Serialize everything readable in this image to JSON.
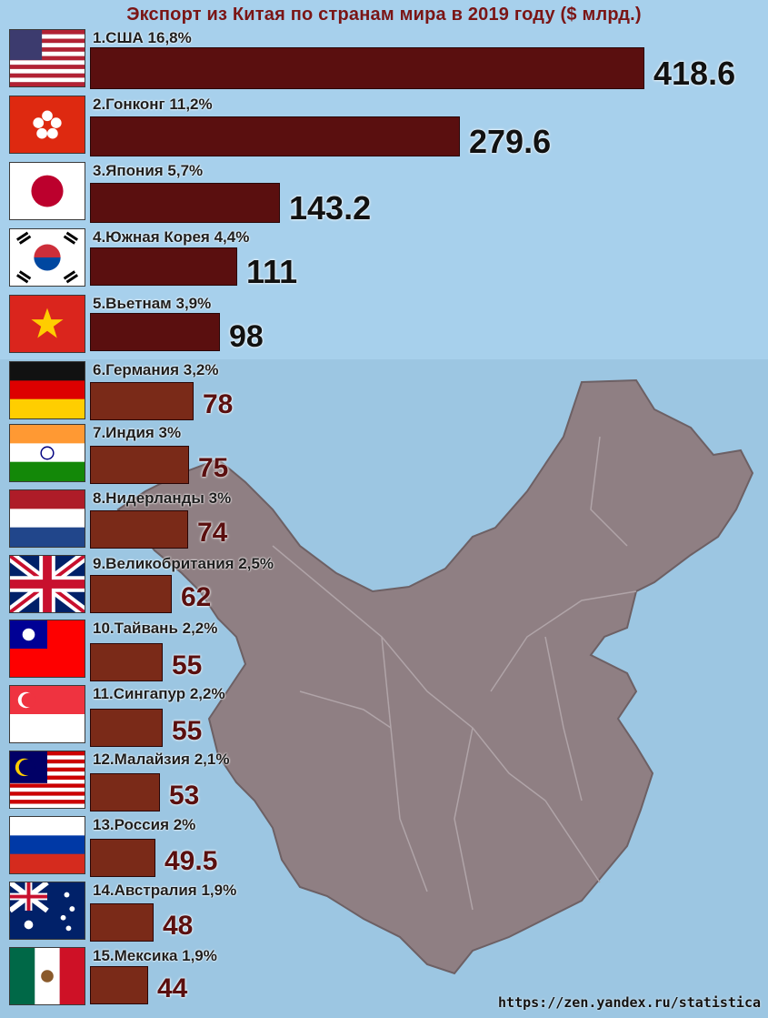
{
  "title": "Экспорт из Китая по странам мира в 2019 году ($ млрд.)",
  "source": "https://zen.yandex.ru/statistica",
  "colors": {
    "bar_top": "#5a0f0f",
    "bar_bottom": "#7a2a18",
    "value_top": "#111111",
    "value_bottom": "#5a0f0f",
    "title": "#7a1515",
    "sea": "#9ec9e6",
    "china": "#8f7f83"
  },
  "chart_data": {
    "type": "bar",
    "orientation": "horizontal",
    "title": "Экспорт из Китая по странам мира в 2019 году ($ млрд.)",
    "xlabel": "",
    "ylabel": "",
    "xlim": [
      0,
      418.6
    ],
    "grid": false,
    "categories": [
      "1.США 16,8%",
      "2.Гонконг 11,2%",
      "3.Япония 5,7%",
      "4.Южная Корея 4,4%",
      "5.Вьетнам 3,9%",
      "6.Германия 3,2%",
      "7.Индия 3%",
      "8.Нидерланды 3%",
      "9.Великобритания 2,5%",
      "10.Тайвань 2,2%",
      "11.Сингапур 2,2%",
      "12.Малайзия 2,1%",
      "13.Россия 2%",
      "14.Австралия 1,9%",
      "15.Мексика 1,9%"
    ],
    "values": [
      418.6,
      279.6,
      143.2,
      111,
      98,
      78,
      75,
      74,
      62,
      55,
      55,
      53,
      49.5,
      48,
      44
    ],
    "value_labels": [
      "418.6",
      "279.6",
      "143.2",
      "111",
      "98",
      "78",
      "75",
      "74",
      "62",
      "55",
      "55",
      "53",
      "49.5",
      "48",
      "44"
    ]
  },
  "flags": [
    "usa-flag-icon",
    "hong-kong-flag-icon",
    "japan-flag-icon",
    "south-korea-flag-icon",
    "vietnam-flag-icon",
    "germany-flag-icon",
    "india-flag-icon",
    "netherlands-flag-icon",
    "uk-flag-icon",
    "taiwan-flag-icon",
    "singapore-flag-icon",
    "malaysia-flag-icon",
    "russia-flag-icon",
    "australia-flag-icon",
    "mexico-flag-icon"
  ]
}
